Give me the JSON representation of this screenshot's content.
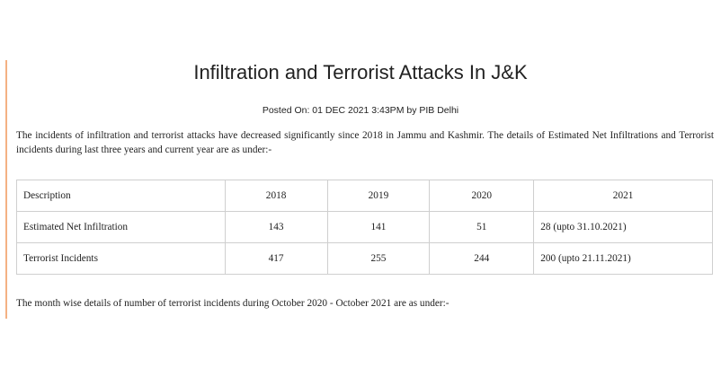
{
  "article": {
    "title": "Infiltration and Terrorist Attacks In J&K",
    "posted": "Posted On: 01 DEC 2021 3:43PM by PIB Delhi",
    "intro": "The incidents of infiltration and terrorist attacks have decreased significantly since 2018 in Jammu and Kashmir. The details of Estimated Net Infiltrations and Terrorist incidents during last three years and current year are as under:-",
    "month_text": "The month wise details of number of terrorist incidents during October 2020 - October 2021 are as under:-"
  },
  "table": {
    "headers": [
      "Description",
      "2018",
      "2019",
      "2020",
      "2021"
    ],
    "rows": [
      [
        "Estimated Net Infiltration",
        "143",
        "141",
        "51",
        "28 (upto 31.10.2021)"
      ],
      [
        "Terrorist Incidents",
        "417",
        "255",
        "244",
        "200 (upto 21.11.2021)"
      ]
    ]
  }
}
